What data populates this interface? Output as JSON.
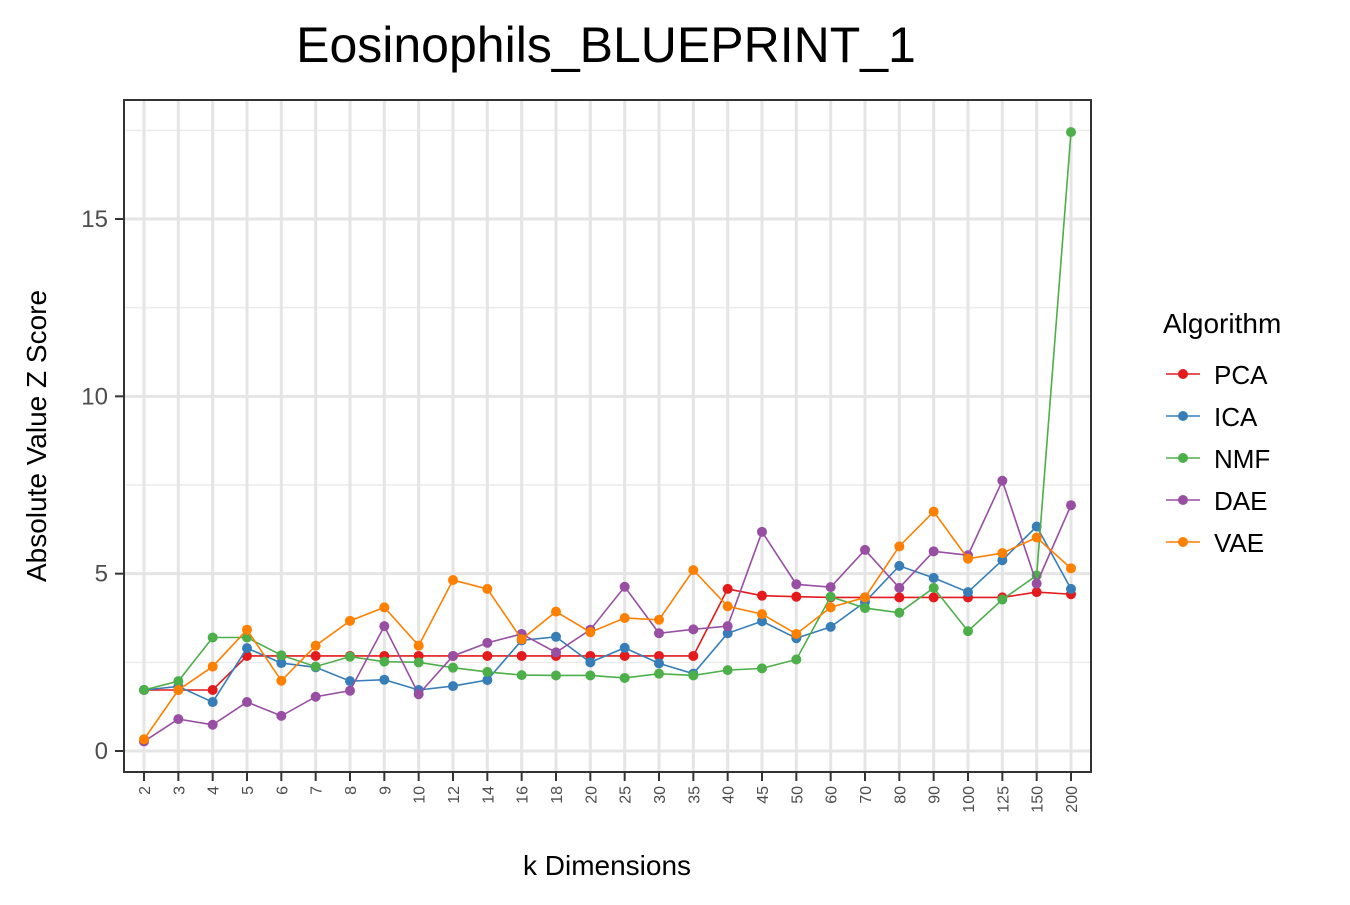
{
  "chart_data": {
    "type": "line",
    "title": "Eosinophils_BLUEPRINT_1",
    "xlabel": "k Dimensions",
    "ylabel": "Absolute Value Z Score",
    "categories": [
      "2",
      "3",
      "4",
      "5",
      "6",
      "7",
      "8",
      "9",
      "10",
      "12",
      "14",
      "16",
      "18",
      "20",
      "25",
      "30",
      "35",
      "40",
      "45",
      "50",
      "60",
      "70",
      "80",
      "90",
      "100",
      "125",
      "150",
      "200"
    ],
    "ylim": [
      -0.6,
      18.3
    ],
    "yticks": [
      0,
      5,
      10,
      15
    ],
    "grid": true,
    "legend_title": "Algorithm",
    "legend_position": "right",
    "series": [
      {
        "name": "PCA",
        "color": "#e41a1c",
        "values": [
          1.72,
          1.72,
          1.72,
          2.68,
          2.68,
          2.68,
          2.68,
          2.68,
          2.68,
          2.68,
          2.68,
          2.68,
          2.68,
          2.68,
          2.68,
          2.68,
          2.68,
          4.57,
          4.38,
          4.35,
          4.33,
          4.33,
          4.33,
          4.33,
          4.33,
          4.33,
          4.48,
          4.42
        ]
      },
      {
        "name": "ICA",
        "color": "#377eb8",
        "values": [
          1.72,
          1.82,
          1.38,
          2.9,
          2.48,
          2.36,
          1.97,
          2.01,
          1.72,
          1.83,
          2.0,
          3.12,
          3.22,
          2.5,
          2.91,
          2.47,
          2.18,
          3.32,
          3.66,
          3.18,
          3.5,
          4.2,
          5.22,
          4.88,
          4.48,
          5.38,
          6.33,
          4.57
        ]
      },
      {
        "name": "NMF",
        "color": "#4daf4a",
        "values": [
          1.72,
          1.97,
          3.2,
          3.2,
          2.7,
          2.38,
          2.66,
          2.52,
          2.5,
          2.35,
          2.23,
          2.14,
          2.13,
          2.13,
          2.06,
          2.18,
          2.13,
          2.28,
          2.33,
          2.58,
          4.35,
          4.03,
          3.9,
          4.6,
          3.38,
          4.27,
          4.95,
          17.45
        ]
      },
      {
        "name": "DAE",
        "color": "#984ea3",
        "values": [
          0.27,
          0.9,
          0.74,
          1.38,
          0.99,
          1.53,
          1.7,
          3.52,
          1.6,
          2.68,
          3.05,
          3.3,
          2.78,
          3.42,
          4.63,
          3.32,
          3.43,
          3.52,
          6.18,
          4.7,
          4.62,
          5.67,
          4.6,
          5.63,
          5.52,
          7.62,
          4.72,
          6.93
        ]
      },
      {
        "name": "VAE",
        "color": "#ff7f00",
        "values": [
          0.33,
          1.72,
          2.38,
          3.42,
          1.98,
          2.97,
          3.67,
          4.05,
          2.97,
          4.82,
          4.57,
          3.15,
          3.93,
          3.35,
          3.75,
          3.7,
          5.1,
          4.08,
          3.86,
          3.3,
          4.05,
          4.33,
          5.77,
          6.75,
          5.42,
          5.58,
          6.02,
          5.15
        ]
      }
    ]
  }
}
